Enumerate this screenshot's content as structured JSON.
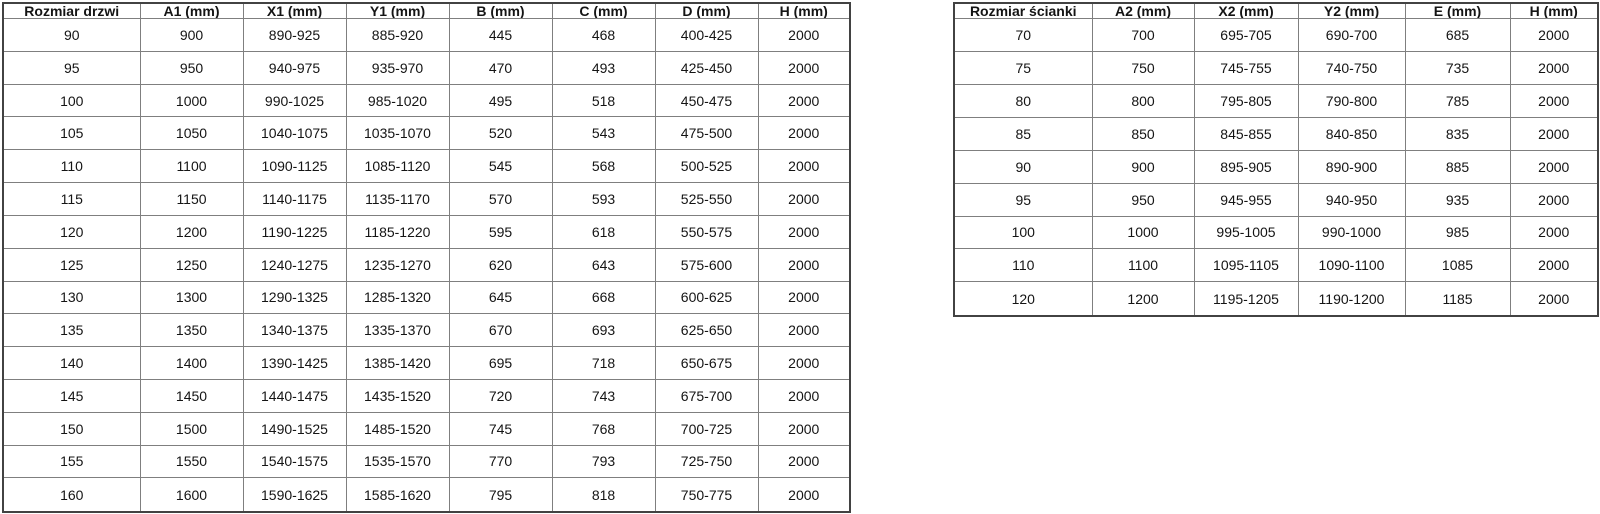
{
  "door_table": {
    "headers": [
      "Rozmiar drzwi",
      "A1 (mm)",
      "X1 (mm)",
      "Y1 (mm)",
      "B (mm)",
      "C (mm)",
      "D (mm)",
      "H (mm)"
    ],
    "rows": [
      [
        "90",
        "900",
        "890-925",
        "885-920",
        "445",
        "468",
        "400-425",
        "2000"
      ],
      [
        "95",
        "950",
        "940-975",
        "935-970",
        "470",
        "493",
        "425-450",
        "2000"
      ],
      [
        "100",
        "1000",
        "990-1025",
        "985-1020",
        "495",
        "518",
        "450-475",
        "2000"
      ],
      [
        "105",
        "1050",
        "1040-1075",
        "1035-1070",
        "520",
        "543",
        "475-500",
        "2000"
      ],
      [
        "110",
        "1100",
        "1090-1125",
        "1085-1120",
        "545",
        "568",
        "500-525",
        "2000"
      ],
      [
        "115",
        "1150",
        "1140-1175",
        "1135-1170",
        "570",
        "593",
        "525-550",
        "2000"
      ],
      [
        "120",
        "1200",
        "1190-1225",
        "1185-1220",
        "595",
        "618",
        "550-575",
        "2000"
      ],
      [
        "125",
        "1250",
        "1240-1275",
        "1235-1270",
        "620",
        "643",
        "575-600",
        "2000"
      ],
      [
        "130",
        "1300",
        "1290-1325",
        "1285-1320",
        "645",
        "668",
        "600-625",
        "2000"
      ],
      [
        "135",
        "1350",
        "1340-1375",
        "1335-1370",
        "670",
        "693",
        "625-650",
        "2000"
      ],
      [
        "140",
        "1400",
        "1390-1425",
        "1385-1420",
        "695",
        "718",
        "650-675",
        "2000"
      ],
      [
        "145",
        "1450",
        "1440-1475",
        "1435-1520",
        "720",
        "743",
        "675-700",
        "2000"
      ],
      [
        "150",
        "1500",
        "1490-1525",
        "1485-1520",
        "745",
        "768",
        "700-725",
        "2000"
      ],
      [
        "155",
        "1550",
        "1540-1575",
        "1535-1570",
        "770",
        "793",
        "725-750",
        "2000"
      ],
      [
        "160",
        "1600",
        "1590-1625",
        "1585-1620",
        "795",
        "818",
        "750-775",
        "2000"
      ]
    ]
  },
  "wall_table": {
    "headers": [
      "Rozmiar ścianki",
      "A2 (mm)",
      "X2 (mm)",
      "Y2 (mm)",
      "E (mm)",
      "H (mm)"
    ],
    "rows": [
      [
        "70",
        "700",
        "695-705",
        "690-700",
        "685",
        "2000"
      ],
      [
        "75",
        "750",
        "745-755",
        "740-750",
        "735",
        "2000"
      ],
      [
        "80",
        "800",
        "795-805",
        "790-800",
        "785",
        "2000"
      ],
      [
        "85",
        "850",
        "845-855",
        "840-850",
        "835",
        "2000"
      ],
      [
        "90",
        "900",
        "895-905",
        "890-900",
        "885",
        "2000"
      ],
      [
        "95",
        "950",
        "945-955",
        "940-950",
        "935",
        "2000"
      ],
      [
        "100",
        "1000",
        "995-1005",
        "990-1000",
        "985",
        "2000"
      ],
      [
        "110",
        "1100",
        "1095-1105",
        "1090-1100",
        "1085",
        "2000"
      ],
      [
        "120",
        "1200",
        "1195-1205",
        "1190-1200",
        "1185",
        "2000"
      ]
    ]
  },
  "colors": {
    "background": "#ffffff",
    "text": "#141414",
    "border_inner": "#7f7f7f",
    "border_outer": "#424242"
  }
}
